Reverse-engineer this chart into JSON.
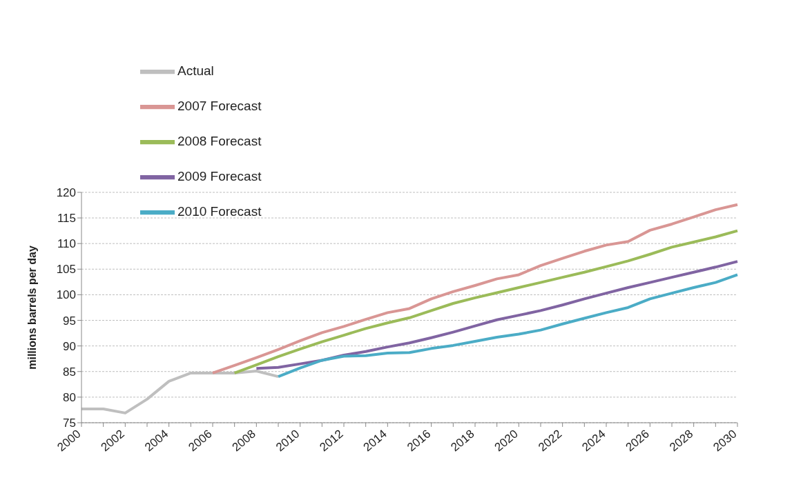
{
  "chart_data": {
    "type": "line",
    "ylabel": "millions barrels per day",
    "categories": [
      "2000",
      null,
      "2002",
      null,
      "2004",
      null,
      "2006",
      null,
      "2008",
      null,
      "2010",
      null,
      "2012",
      null,
      "2014",
      null,
      "2016",
      null,
      "2018",
      null,
      "2020",
      null,
      "2022",
      null,
      "2024",
      null,
      "2026",
      null,
      "2028",
      null,
      "2030"
    ],
    "series": [
      {
        "name": "Actual",
        "color": "#bfbfbf",
        "values": [
          77.7,
          77.7,
          76.9,
          79.6,
          83.1,
          84.7,
          84.7,
          84.7,
          85.1,
          84.0,
          null,
          null,
          null,
          null,
          null,
          null,
          null,
          null,
          null,
          null,
          null,
          null,
          null,
          null,
          null,
          null,
          null,
          null,
          null,
          null,
          null
        ]
      },
      {
        "name": "2007 Forecast",
        "color": "#d99694",
        "values": [
          null,
          null,
          null,
          null,
          null,
          null,
          84.7,
          86.2,
          87.7,
          89.3,
          91.0,
          92.6,
          93.8,
          95.2,
          96.5,
          97.3,
          99.2,
          100.6,
          101.8,
          103.1,
          103.9,
          105.7,
          107.1,
          108.5,
          109.7,
          110.4,
          112.6,
          113.8,
          115.2,
          116.6,
          117.6
        ]
      },
      {
        "name": "2008 Forecast",
        "color": "#9bbb59",
        "values": [
          null,
          null,
          null,
          null,
          null,
          null,
          null,
          84.7,
          86.3,
          87.9,
          89.4,
          90.8,
          92.1,
          93.4,
          94.5,
          95.5,
          96.9,
          98.3,
          99.4,
          100.4,
          101.4,
          102.4,
          103.4,
          104.4,
          105.5,
          106.6,
          107.9,
          109.3,
          110.3,
          111.3,
          112.5
        ]
      },
      {
        "name": "2009 Forecast",
        "color": "#8064a2",
        "values": [
          null,
          null,
          null,
          null,
          null,
          null,
          null,
          null,
          85.6,
          85.8,
          86.5,
          87.2,
          88.2,
          88.9,
          89.8,
          90.6,
          91.6,
          92.7,
          93.9,
          95.1,
          96.0,
          96.9,
          98.0,
          99.2,
          100.3,
          101.4,
          102.4,
          103.4,
          104.4,
          105.4,
          106.5
        ]
      },
      {
        "name": "2010 Forecast",
        "color": "#4bacc6",
        "values": [
          null,
          null,
          null,
          null,
          null,
          null,
          null,
          null,
          null,
          84.0,
          85.7,
          87.2,
          88.0,
          88.1,
          88.6,
          88.7,
          89.5,
          90.1,
          90.9,
          91.7,
          92.3,
          93.1,
          94.3,
          95.4,
          96.5,
          97.5,
          99.2,
          100.3,
          101.4,
          102.4,
          103.9
        ]
      }
    ],
    "ylim": [
      75,
      120
    ],
    "yticks": [
      75,
      80,
      85,
      90,
      95,
      100,
      105,
      110,
      115,
      120
    ],
    "grid": "y",
    "legend": "top left",
    "marker": "none",
    "line_style": "solid"
  }
}
